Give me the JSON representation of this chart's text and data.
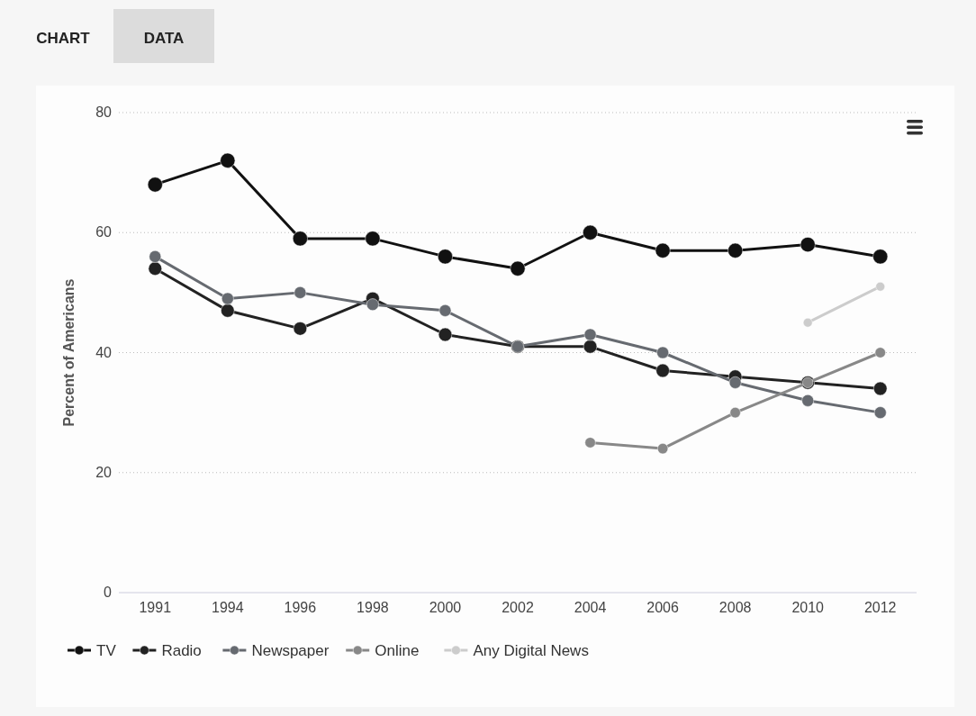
{
  "chart_data": {
    "type": "line",
    "ylabel": "Percent of Americans",
    "annotations": [
      "CHART",
      "DATA"
    ],
    "categories": [
      "1991",
      "1994",
      "1996",
      "1998",
      "2000",
      "2002",
      "2004",
      "2006",
      "2008",
      "2010",
      "2012"
    ],
    "series": [
      {
        "name": "TV",
        "color": "#111111",
        "values": [
          68,
          72,
          59,
          59,
          56,
          54,
          60,
          57,
          57,
          58,
          56
        ]
      },
      {
        "name": "Radio",
        "color": "#222222",
        "values": [
          54,
          47,
          44,
          49,
          43,
          41,
          41,
          37,
          36,
          35,
          34
        ]
      },
      {
        "name": "Newspaper",
        "color": "#666a70",
        "values": [
          56,
          49,
          50,
          48,
          47,
          41,
          43,
          40,
          35,
          32,
          30
        ]
      },
      {
        "name": "Online",
        "color": "#888888",
        "values": [
          null,
          null,
          null,
          null,
          null,
          null,
          25,
          24,
          30,
          35,
          40
        ]
      },
      {
        "name": "Any Digital News",
        "color": "#cccccc",
        "values": [
          null,
          null,
          null,
          null,
          null,
          null,
          null,
          null,
          null,
          45,
          51
        ]
      }
    ],
    "ylim": [
      0,
      80
    ],
    "yticks": [
      0,
      20,
      40,
      60,
      80
    ],
    "grid": "y",
    "legend": "bottom",
    "marker": "circle",
    "line_style": "solid"
  }
}
